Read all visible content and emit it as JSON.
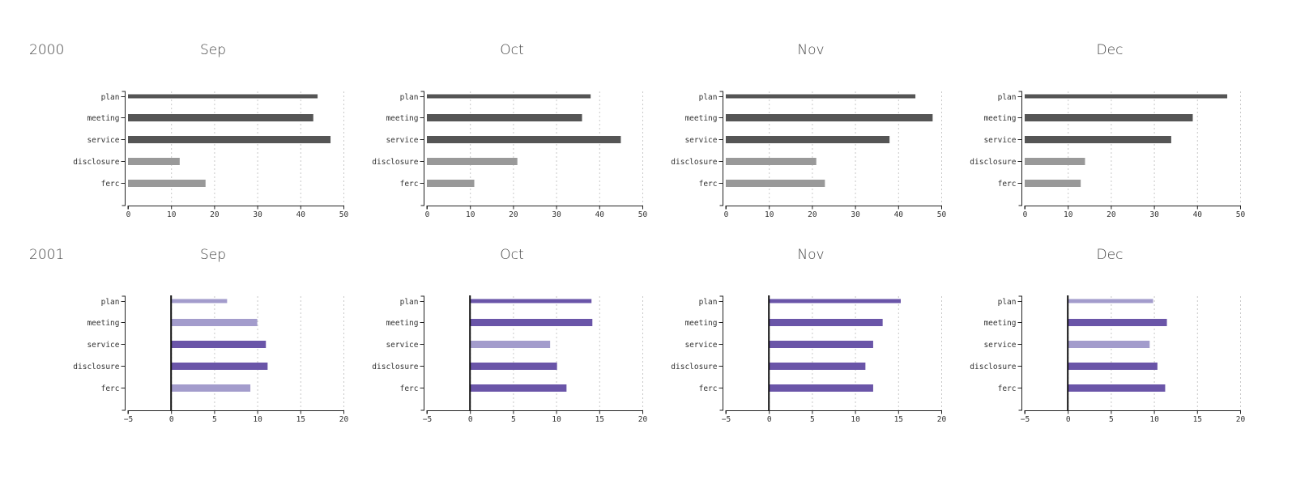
{
  "chart_data": {
    "type": "bar",
    "orientation": "horizontal",
    "layout": "small-multiples",
    "categories": [
      "plan",
      "meeting",
      "service",
      "disclosure",
      "ferc"
    ],
    "columns": [
      "Sep",
      "Oct",
      "Nov",
      "Dec"
    ],
    "grid": true,
    "rows": [
      {
        "label": "2000",
        "xlim": [
          0,
          50
        ],
        "ticks": [
          0,
          10,
          20,
          30,
          40,
          50
        ],
        "colors": {
          "dark": "#555555",
          "light": "#999999"
        },
        "panels": [
          {
            "title": "Sep",
            "values": [
              44,
              43,
              47,
              12,
              18
            ],
            "shade": [
              "dark",
              "dark",
              "dark",
              "light",
              "light"
            ]
          },
          {
            "title": "Oct",
            "values": [
              38,
              36,
              45,
              21,
              11
            ],
            "shade": [
              "dark",
              "dark",
              "dark",
              "light",
              "light"
            ]
          },
          {
            "title": "Nov",
            "values": [
              44,
              48,
              38,
              21,
              23
            ],
            "shade": [
              "dark",
              "dark",
              "dark",
              "light",
              "light"
            ]
          },
          {
            "title": "Dec",
            "values": [
              47,
              39,
              34,
              14,
              13
            ],
            "shade": [
              "dark",
              "dark",
              "dark",
              "light",
              "light"
            ]
          }
        ]
      },
      {
        "label": "2001",
        "xlim": [
          -5,
          20
        ],
        "ticks": [
          -5,
          0,
          5,
          10,
          15,
          20
        ],
        "colors": {
          "dark": "#6a55a8",
          "light": "#a39ccc"
        },
        "panels": [
          {
            "title": "Sep",
            "values": [
              6.5,
              10,
              11,
              11.2,
              9.2
            ],
            "shade": [
              "light",
              "light",
              "dark",
              "dark",
              "light"
            ]
          },
          {
            "title": "Oct",
            "values": [
              14.1,
              14.2,
              9.3,
              10.1,
              11.2
            ],
            "shade": [
              "dark",
              "dark",
              "light",
              "dark",
              "dark"
            ]
          },
          {
            "title": "Nov",
            "values": [
              15.3,
              13.2,
              12.1,
              11.2,
              12.1
            ],
            "shade": [
              "dark",
              "dark",
              "dark",
              "dark",
              "dark"
            ]
          },
          {
            "title": "Dec",
            "values": [
              9.9,
              11.5,
              9.5,
              10.4,
              11.3
            ],
            "shade": [
              "light",
              "dark",
              "light",
              "dark",
              "dark"
            ]
          }
        ]
      }
    ]
  }
}
